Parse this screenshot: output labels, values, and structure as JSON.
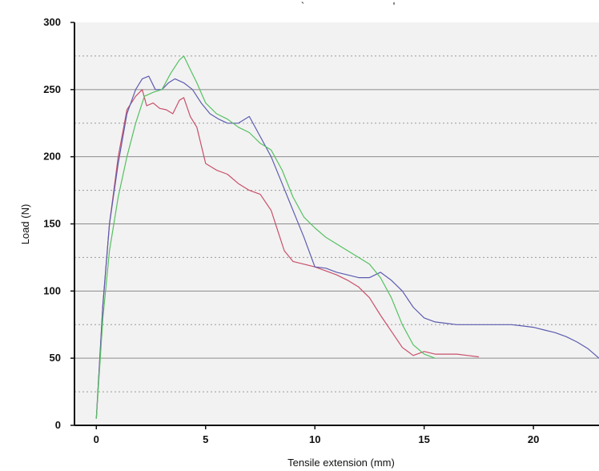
{
  "chart_data": {
    "type": "line",
    "title": "",
    "xlabel": "Tensile extension (mm)",
    "ylabel": "Load (N)",
    "xlim": [
      -1,
      23
    ],
    "ylim": [
      0,
      300
    ],
    "x_ticks": [
      0,
      5,
      10,
      15,
      20
    ],
    "y_ticks": [
      0,
      50,
      100,
      150,
      200,
      250,
      300
    ],
    "y_minor_dotted_grid": [
      25,
      75,
      125,
      175,
      225,
      275
    ],
    "grid": "horizontal",
    "legend": "none",
    "series": [
      {
        "color": "#c8506a",
        "x": [
          0,
          0.3,
          0.6,
          1.0,
          1.4,
          1.8,
          2.1,
          2.3,
          2.6,
          2.9,
          3.2,
          3.5,
          3.8,
          4.0,
          4.3,
          4.6,
          5.0,
          5.5,
          6.0,
          6.5,
          7.0,
          7.5,
          8.0,
          8.3,
          8.6,
          9.0,
          9.5,
          10.0,
          10.5,
          11.0,
          11.5,
          12.0,
          12.5,
          13.0,
          13.5,
          14.0,
          14.5,
          15.0,
          15.5,
          16.0,
          16.5,
          17.0,
          17.5
        ],
        "y": [
          5,
          90,
          150,
          200,
          235,
          245,
          250,
          238,
          240,
          236,
          235,
          232,
          242,
          244,
          230,
          222,
          195,
          190,
          187,
          180,
          175,
          172,
          160,
          145,
          130,
          122,
          120,
          118,
          115,
          112,
          108,
          103,
          95,
          82,
          70,
          58,
          52,
          55,
          53,
          53,
          53,
          52,
          51
        ]
      },
      {
        "color": "#5c5cb0",
        "x": [
          0,
          0.3,
          0.6,
          1.0,
          1.4,
          1.8,
          2.1,
          2.4,
          2.7,
          3.0,
          3.3,
          3.6,
          4.0,
          4.4,
          4.8,
          5.2,
          5.6,
          6.0,
          6.5,
          7.0,
          7.5,
          8.0,
          8.5,
          9.0,
          9.5,
          10.0,
          10.5,
          11.0,
          11.5,
          12.0,
          12.5,
          13.0,
          13.5,
          14.0,
          14.5,
          15.0,
          15.5,
          16.0,
          16.5,
          17.0,
          17.5,
          18.0,
          18.5,
          19.0,
          19.5,
          20.0,
          20.5,
          21.0,
          21.5,
          22.0,
          22.5,
          23.0
        ],
        "y": [
          5,
          90,
          150,
          195,
          232,
          250,
          258,
          260,
          250,
          250,
          255,
          258,
          255,
          250,
          240,
          232,
          228,
          225,
          225,
          230,
          215,
          200,
          180,
          160,
          140,
          118,
          117,
          114,
          112,
          110,
          110,
          114,
          108,
          100,
          88,
          80,
          77,
          76,
          75,
          75,
          75,
          75,
          75,
          75,
          74,
          73,
          71,
          69,
          66,
          62,
          57,
          50
        ]
      },
      {
        "color": "#55c060",
        "x": [
          0,
          0.3,
          0.6,
          1.0,
          1.4,
          1.8,
          2.2,
          2.6,
          3.0,
          3.4,
          3.8,
          4.0,
          4.3,
          4.6,
          5.0,
          5.5,
          6.0,
          6.5,
          7.0,
          7.5,
          8.0,
          8.5,
          9.0,
          9.5,
          10.0,
          10.5,
          11.0,
          11.5,
          12.0,
          12.5,
          13.0,
          13.5,
          14.0,
          14.5,
          15.0,
          15.5
        ],
        "y": [
          5,
          80,
          130,
          170,
          200,
          225,
          245,
          248,
          250,
          262,
          272,
          275,
          265,
          255,
          240,
          232,
          228,
          222,
          218,
          210,
          205,
          190,
          170,
          155,
          147,
          140,
          135,
          130,
          125,
          120,
          110,
          95,
          75,
          60,
          53,
          50
        ]
      }
    ],
    "top_marks": [
      "`",
      "'"
    ]
  }
}
